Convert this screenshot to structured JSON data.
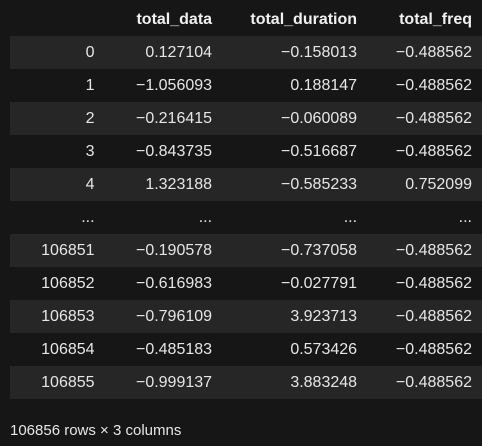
{
  "dataframe": {
    "columns": [
      "",
      "total_data",
      "total_duration",
      "total_freq"
    ],
    "rows": [
      [
        "0",
        "0.127104",
        "−0.158013",
        "−0.488562"
      ],
      [
        "1",
        "−1.056093",
        "0.188147",
        "−0.488562"
      ],
      [
        "2",
        "−0.216415",
        "−0.060089",
        "−0.488562"
      ],
      [
        "3",
        "−0.843735",
        "−0.516687",
        "−0.488562"
      ],
      [
        "4",
        "1.323188",
        "−0.585233",
        "0.752099"
      ],
      [
        "...",
        "...",
        "...",
        "..."
      ],
      [
        "106851",
        "−0.190578",
        "−0.737058",
        "−0.488562"
      ],
      [
        "106852",
        "−0.616983",
        "−0.027791",
        "−0.488562"
      ],
      [
        "106853",
        "−0.796109",
        "3.923713",
        "−0.488562"
      ],
      [
        "106854",
        "−0.485183",
        "0.573426",
        "−0.488562"
      ],
      [
        "106855",
        "−0.999137",
        "3.883248",
        "−0.488562"
      ]
    ],
    "shape_text": "106856 rows × 3 columns"
  }
}
